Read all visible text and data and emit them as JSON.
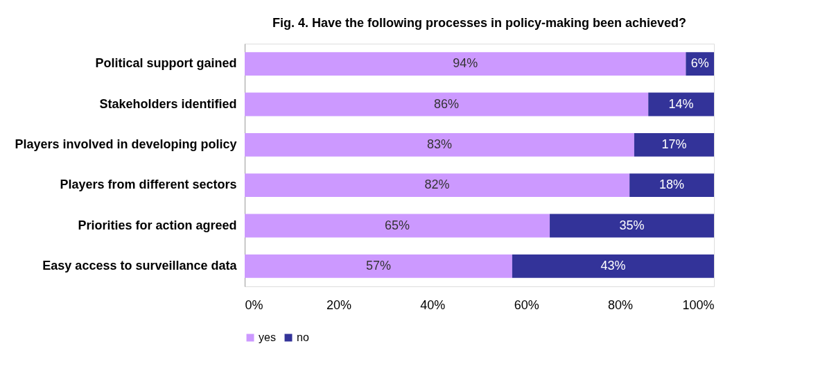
{
  "chart_data": {
    "type": "bar",
    "orientation": "horizontal",
    "stacked": true,
    "title": "Fig. 4. Have the following processes in policy-making been achieved?",
    "categories": [
      "Political support gained",
      "Stakeholders identified",
      "Players involved in developing policy",
      "Players from different sectors",
      "Priorities for action agreed",
      "Easy access to surveillance data"
    ],
    "series": [
      {
        "name": "yes",
        "color": "#cc99ff",
        "values": [
          94,
          86,
          83,
          82,
          65,
          57
        ],
        "value_labels": [
          "94%",
          "86%",
          "83%",
          "82%",
          "65%",
          "57%"
        ]
      },
      {
        "name": "no",
        "color": "#333399",
        "values": [
          6,
          14,
          17,
          18,
          35,
          43
        ],
        "value_labels": [
          "6%",
          "14%",
          "17%",
          "18%",
          "35%",
          "43%"
        ]
      }
    ],
    "xlim": [
      0,
      100
    ],
    "xticks": [
      {
        "value": 0,
        "label": "0%"
      },
      {
        "value": 20,
        "label": "20%"
      },
      {
        "value": 40,
        "label": "40%"
      },
      {
        "value": 60,
        "label": "60%"
      },
      {
        "value": 80,
        "label": "80%"
      },
      {
        "value": 100,
        "label": "100%"
      }
    ],
    "grid": false,
    "legend": "bottom"
  }
}
